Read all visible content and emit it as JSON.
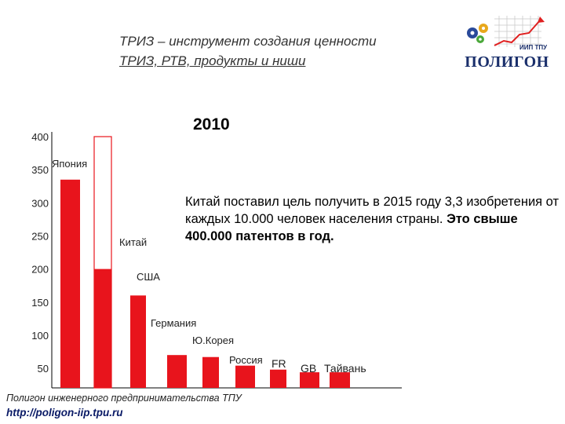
{
  "header": {
    "line1": "ТРИЗ – инструмент создания ценности",
    "line2": "ТРИЗ, РТВ, продукты и ниши"
  },
  "logo": {
    "name": "ПОЛИГОН",
    "sub": "ИИП ТПУ"
  },
  "note": {
    "text": "Китай поставил цель получить в 2015 году 3,3 изобретения от каждых 10.000 человек населения страны. ",
    "bold": "Это свыше 400.000 патентов в год."
  },
  "footer": {
    "line1": "Полигон инженерного предпринимательства ТПУ",
    "line2": "http://poligon-iip.tpu.ru"
  },
  "colors": {
    "bar": "#e8141c",
    "target_outline": "#e8141c",
    "axis": "#000000"
  },
  "chart_data": {
    "type": "bar",
    "title": "2010",
    "ylim": [
      30,
      400
    ],
    "yticks": [
      400,
      350,
      300,
      250,
      200,
      150,
      100,
      50
    ],
    "categories": [
      "Япония",
      "Китай",
      "США",
      "Германия",
      "Ю.Корея",
      "Россия",
      "FR",
      "GB",
      "Тайвань"
    ],
    "values": [
      335,
      200,
      160,
      70,
      67,
      54,
      48,
      44,
      44
    ],
    "target": {
      "category": "Китай",
      "value": 400
    }
  }
}
